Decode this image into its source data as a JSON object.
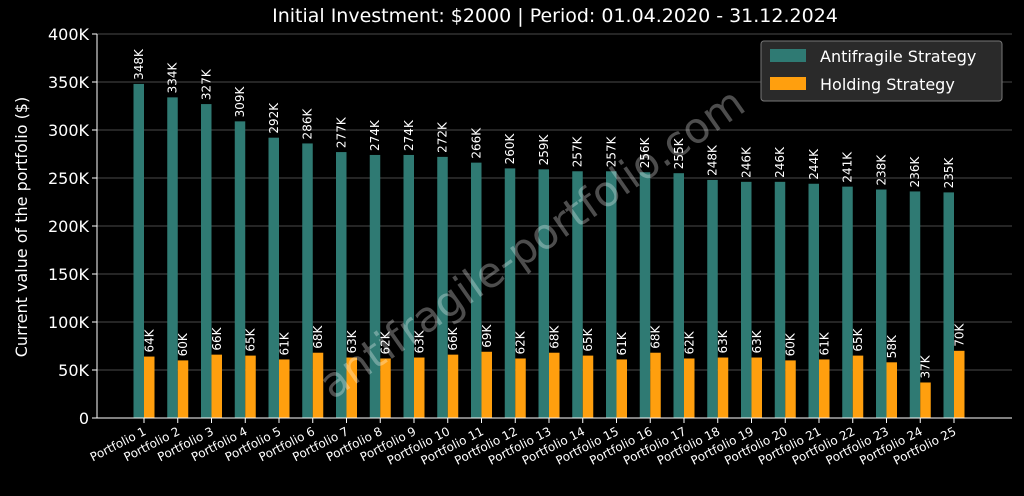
{
  "chart_data": {
    "type": "bar",
    "title": "Initial Investment: $2000 | Period: 01.04.2020 - 31.12.2024",
    "xlabel": "",
    "ylabel": "Current value of the portfolio ($)",
    "ylim": [
      0,
      400000
    ],
    "yticks": [
      0,
      50000,
      100000,
      150000,
      200000,
      250000,
      300000,
      350000,
      400000
    ],
    "ytick_labels": [
      "0",
      "50K",
      "100K",
      "150K",
      "200K",
      "250K",
      "300K",
      "350K",
      "400K"
    ],
    "grid": true,
    "legend_position": "top-right",
    "categories": [
      "Portfolio 1",
      "Portfolio 2",
      "Portfolio 3",
      "Portfolio 4",
      "Portfolio 5",
      "Portfolio 6",
      "Portfolio 7",
      "Portfolio 8",
      "Portfolio 9",
      "Portfolio 10",
      "Portfolio 11",
      "Portfolio 12",
      "Portfolio 13",
      "Portfolio 14",
      "Portfolio 15",
      "Portfolio 16",
      "Portfolio 17",
      "Portfolio 18",
      "Portfolio 19",
      "Portfolio 20",
      "Portfolio 21",
      "Portfolio 22",
      "Portfolio 23",
      "Portfolio 24",
      "Portfolio 25"
    ],
    "series": [
      {
        "name": "Antifragile Strategy",
        "color": "#2f7a73",
        "values": [
          348000,
          334000,
          327000,
          309000,
          292000,
          286000,
          277000,
          274000,
          274000,
          272000,
          266000,
          260000,
          259000,
          257000,
          257000,
          256000,
          255000,
          248000,
          246000,
          246000,
          244000,
          241000,
          238000,
          236000,
          235000
        ],
        "labels": [
          "348K",
          "334K",
          "327K",
          "309K",
          "292K",
          "286K",
          "277K",
          "274K",
          "274K",
          "272K",
          "266K",
          "260K",
          "259K",
          "257K",
          "257K",
          "256K",
          "255K",
          "248K",
          "246K",
          "246K",
          "244K",
          "241K",
          "238K",
          "236K",
          "235K"
        ]
      },
      {
        "name": "Holding Strategy",
        "color": "#ff9f0e",
        "values": [
          64000,
          60000,
          66000,
          65000,
          61000,
          68000,
          63000,
          62000,
          63000,
          66000,
          69000,
          62000,
          68000,
          65000,
          61000,
          68000,
          62000,
          63000,
          63000,
          60000,
          61000,
          65000,
          58000,
          37000,
          70000
        ],
        "labels": [
          "64K",
          "60K",
          "66K",
          "65K",
          "61K",
          "68K",
          "63K",
          "62K",
          "63K",
          "66K",
          "69K",
          "62K",
          "68K",
          "65K",
          "61K",
          "68K",
          "62K",
          "63K",
          "63K",
          "60K",
          "61K",
          "65K",
          "58K",
          "37K",
          "70K"
        ]
      }
    ],
    "watermark": "antifragile-portfolio.com"
  }
}
